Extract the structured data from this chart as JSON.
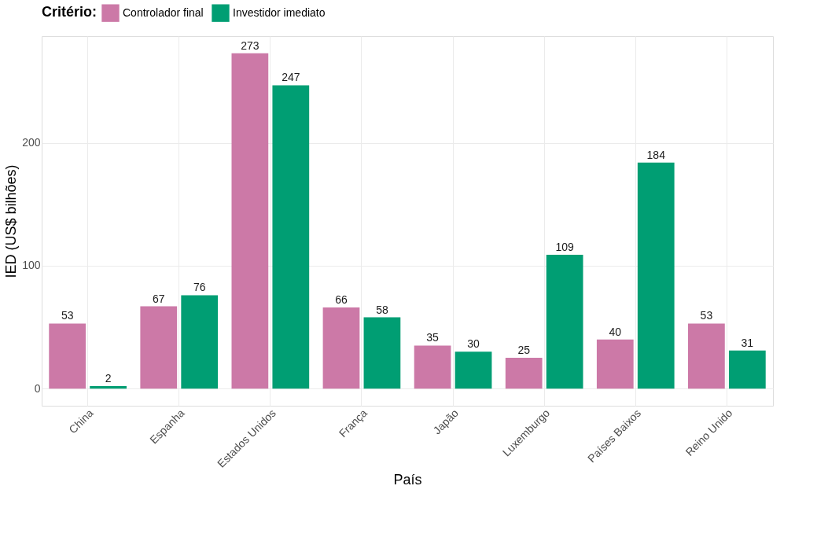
{
  "chart_data": {
    "type": "bar",
    "xlabel": "País",
    "ylabel": "IED (US$ bilhões)",
    "legend_title": "Critério:",
    "legend": "top",
    "grid": true,
    "data_labels": true,
    "categories": [
      "China",
      "Espanha",
      "Estados Unidos",
      "França",
      "Japão",
      "Luxemburgo",
      "Países Baixos",
      "Reino Unido"
    ],
    "ylim": [
      -14,
      287
    ],
    "yticks": [
      0,
      100,
      200
    ],
    "series": [
      {
        "name": "Controlador final",
        "color": "#cc79a7",
        "values": [
          53,
          67,
          273,
          66,
          35,
          25,
          40,
          53
        ]
      },
      {
        "name": "Investidor imediato",
        "color": "#009e73",
        "values": [
          2,
          76,
          247,
          58,
          30,
          109,
          184,
          31
        ]
      }
    ]
  }
}
